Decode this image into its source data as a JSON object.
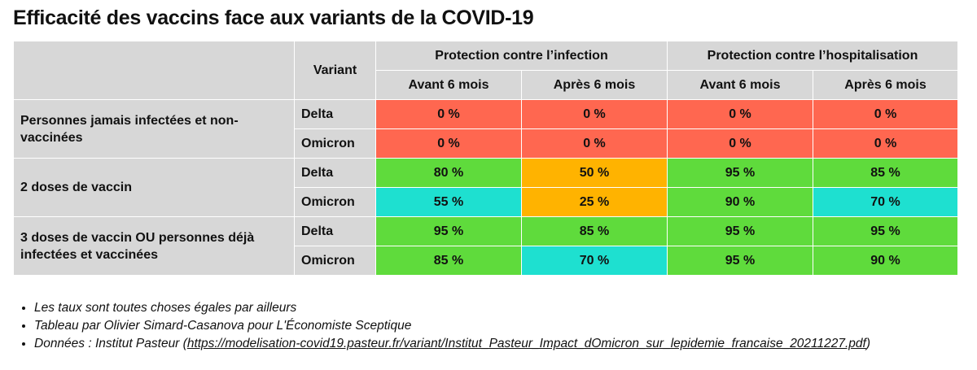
{
  "title": "Efficacité des vaccins face aux variants de la COVID-19",
  "table": {
    "variant_header": "Variant",
    "group_headers": [
      "Protection contre l’infection",
      "Protection contre l’hospitalisation"
    ],
    "sub_headers": [
      "Avant 6 mois",
      "Après 6 mois",
      "Avant 6 mois",
      "Après 6 mois"
    ],
    "colors": {
      "red": "#ff6750",
      "green": "#5fdb3c",
      "orange": "#ffb300",
      "cyan": "#1ee0d0",
      "header_gray": "#d7d7d7"
    },
    "groups": [
      {
        "label": "Personnes jamais infectées et non-vaccinées",
        "rows": [
          {
            "variant": "Delta",
            "values": [
              "0 %",
              "0 %",
              "0 %",
              "0 %"
            ],
            "colors": [
              "red",
              "red",
              "red",
              "red"
            ]
          },
          {
            "variant": "Omicron",
            "values": [
              "0 %",
              "0 %",
              "0 %",
              "0 %"
            ],
            "colors": [
              "red",
              "red",
              "red",
              "red"
            ]
          }
        ]
      },
      {
        "label": "2 doses de vaccin",
        "rows": [
          {
            "variant": "Delta",
            "values": [
              "80 %",
              "50 %",
              "95 %",
              "85 %"
            ],
            "colors": [
              "green",
              "orange",
              "green",
              "green"
            ]
          },
          {
            "variant": "Omicron",
            "values": [
              "55 %",
              "25 %",
              "90 %",
              "70 %"
            ],
            "colors": [
              "cyan",
              "orange",
              "green",
              "cyan"
            ]
          }
        ]
      },
      {
        "label": "3 doses de vaccin OU personnes déjà infectées et vaccinées",
        "rows": [
          {
            "variant": "Delta",
            "values": [
              "95 %",
              "85 %",
              "95 %",
              "95 %"
            ],
            "colors": [
              "green",
              "green",
              "green",
              "green"
            ]
          },
          {
            "variant": "Omicron",
            "values": [
              "85 %",
              "70 %",
              "95 %",
              "90 %"
            ],
            "colors": [
              "green",
              "cyan",
              "green",
              "green"
            ]
          }
        ]
      }
    ]
  },
  "notes": [
    "Les taux sont toutes choses égales par ailleurs",
    "Tableau par Olivier Simard-Casanova pour L'Économiste Sceptique"
  ],
  "source": {
    "prefix": "Données : Institut Pasteur (",
    "url": "https://modelisation-covid19.pasteur.fr/variant/Institut_Pasteur_Impact_dOmicron_sur_lepidemie_francaise_20211227.pdf",
    "suffix": ")"
  }
}
